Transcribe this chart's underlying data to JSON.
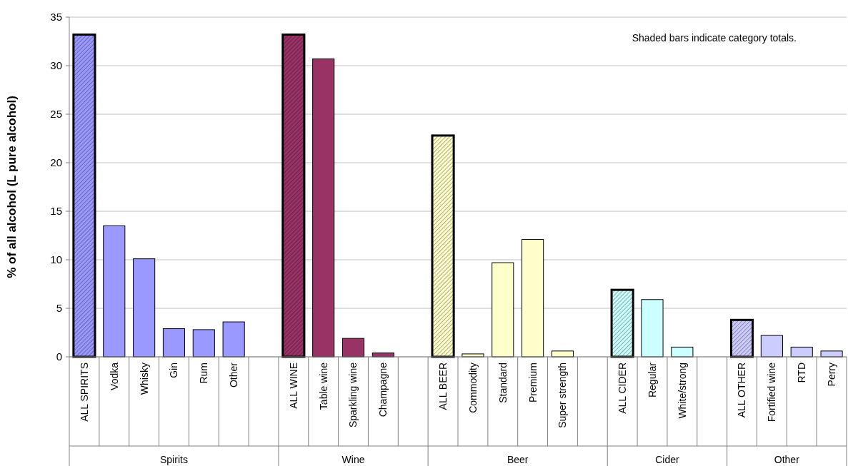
{
  "chart_data": {
    "type": "bar",
    "ylabel": "% of all alcohol (L pure alcohol)",
    "categories": [
      "ALL SPIRITS",
      "Vodka",
      "Whisky",
      "Gin",
      "Rum",
      "Other",
      null,
      "ALL WINE",
      "Table wine",
      "Sparkling wine",
      "Champagne",
      null,
      "ALL BEER",
      "Commodity",
      "Standard",
      "Premium",
      "Super strength",
      null,
      "ALL CIDER",
      "Regular",
      "White/strong",
      null,
      "ALL OTHER",
      "Fortified wine",
      "RTD",
      "Perry"
    ],
    "series": [
      {
        "colors": [
          null,
          "#9999ff",
          "#9999ff",
          "#9999ff",
          "#9999ff",
          "#9999ff",
          null,
          null,
          "#993366",
          "#993366",
          "#993366",
          null,
          null,
          "#ffffcc",
          "#ffffcc",
          "#ffffcc",
          "#ffffcc",
          null,
          null,
          "#ccffff",
          "#ccffff",
          null,
          null,
          "#ccccff",
          "#ccccff",
          "#ccccff"
        ],
        "values": [
          null,
          13.5,
          10.1,
          2.9,
          2.8,
          3.6,
          null,
          null,
          30.7,
          1.9,
          0.4,
          null,
          null,
          0.3,
          9.7,
          12.1,
          0.6,
          null,
          null,
          5.9,
          1.0,
          null,
          null,
          2.2,
          1.0,
          0.6
        ]
      },
      {
        "colors": [
          "#9999ff",
          null,
          null,
          null,
          null,
          null,
          null,
          "#993366",
          null,
          null,
          null,
          null,
          "#ffffcc",
          null,
          null,
          null,
          null,
          null,
          "#ccffff",
          null,
          null,
          null,
          "#ccccff",
          null,
          null,
          null
        ],
        "values": [
          33.2,
          null,
          null,
          null,
          null,
          null,
          null,
          33.2,
          null,
          null,
          null,
          null,
          22.8,
          null,
          null,
          null,
          null,
          null,
          6.9,
          null,
          null,
          null,
          3.8,
          null,
          null,
          null
        ]
      }
    ],
    "ylim": [
      0,
      35
    ],
    "yticks": [
      0,
      5,
      10,
      15,
      20,
      25,
      30,
      35
    ],
    "grid": "y",
    "annotations": [
      "Shaded bars indicate category totals.",
      "Spirits",
      "Wine",
      "Beer",
      "Cider",
      "Other"
    ]
  }
}
